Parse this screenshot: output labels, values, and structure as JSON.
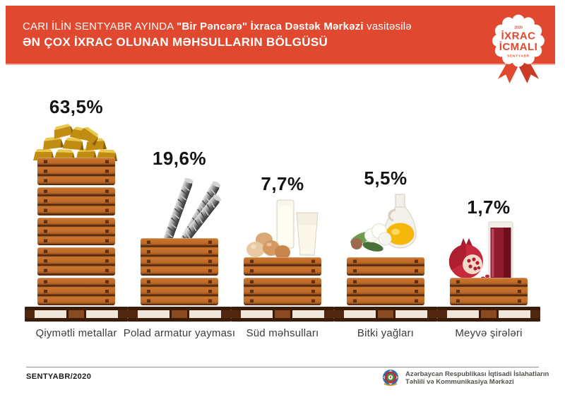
{
  "header": {
    "line1_regular": "CARI İLİN SENTYABR AYINDA ",
    "line1_bold": "\"Bir Pəncərə\" İxraca Dəstək Mərkəzi",
    "line1_suffix": " vasitəsilə",
    "line2": "ƏN ÇOX İXRAC OLUNAN MƏHSULLARIN BÖLGÜSÜ",
    "background_color": "#E0492F"
  },
  "badge": {
    "top_small": "2020",
    "line1": "İXRAC",
    "line2": "İCMALI",
    "bottom_small": "SENTYABR",
    "text_color": "#E0492F"
  },
  "chart_data": {
    "type": "bar",
    "title": "Cari ilin sentyabr ayında \"Bir Pəncərə\" İxraca Dəstək Mərkəzi vasitəsilə ən çox ixrac olunan məhsulların bölgüsü",
    "unit": "%",
    "categories": [
      "Qiymətli metallar",
      "Polad armatur yayması",
      "Süd məhsulları",
      "Bitki yağları",
      "Meyvə şirələri"
    ],
    "values": [
      63.5,
      19.6,
      7.7,
      5.5,
      1.7
    ],
    "value_labels": [
      "63,5%",
      "19,6%",
      "7,7%",
      "5,5%",
      "1,7%"
    ],
    "icons": [
      "gold-bars",
      "steel-rebar",
      "dairy",
      "vegetable-oil",
      "fruit-juice"
    ],
    "crate_stacks": [
      [
        3,
        3,
        3,
        3,
        3
      ],
      [
        4,
        3
      ],
      [
        2,
        3
      ],
      [
        2,
        3
      ],
      [
        3
      ]
    ],
    "bar_style": "wooden-crates-on-pallets",
    "legend": "none",
    "grid": "off"
  },
  "footer": {
    "left": "SENTYABR/2020",
    "org_line1": "Azərbaycan Respublikası İqtisadi İslahatların",
    "org_line2": "Təhlili və Kommunikasiya Mərkəzi"
  },
  "colors": {
    "accent_red": "#E0492F",
    "crate_orange": "#C06A28",
    "pallet_dark": "#3A1C09",
    "pallet_cream": "#EFE7DA",
    "text_dark": "#141414"
  }
}
